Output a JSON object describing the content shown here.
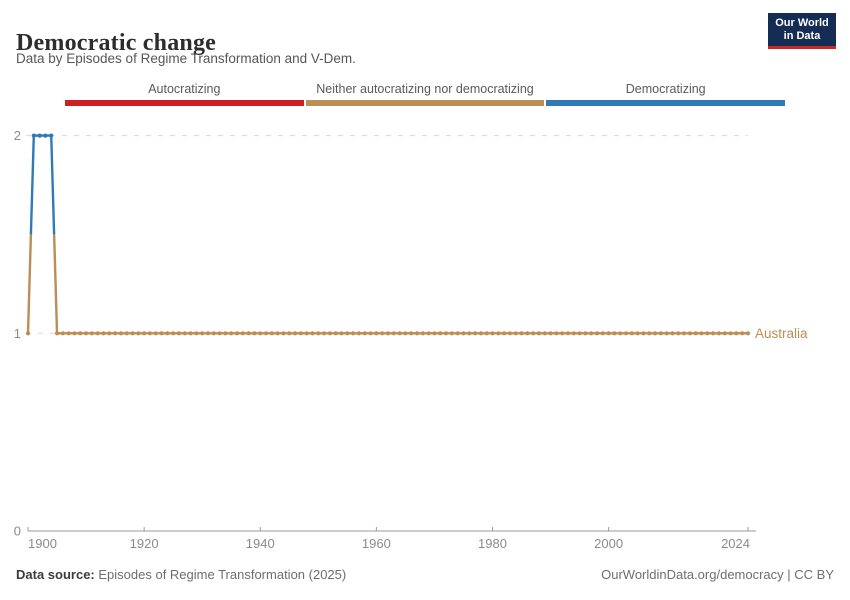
{
  "header": {
    "title": "Democratic change",
    "subtitle": "Data by Episodes of Regime Transformation and V-Dem.",
    "logo": {
      "line1": "Our World",
      "line2": "in Data",
      "bg_color": "#152d54",
      "accent_color": "#cb2824"
    }
  },
  "legend": {
    "items": [
      {
        "label": "Autocratizing",
        "color": "#ce2020"
      },
      {
        "label": "Neither autocratizing nor democratizing",
        "color": "#bc8d54"
      },
      {
        "label": "Democratizing",
        "color": "#2f7ab5"
      }
    ]
  },
  "chart_data": {
    "type": "line",
    "title": "Democratic change",
    "subtitle": "Data by Episodes of Regime Transformation and V-Dem.",
    "entity_label": "Australia",
    "xlim": [
      1900,
      2024
    ],
    "ylim": [
      0,
      2
    ],
    "x_ticks": [
      1900,
      1920,
      1940,
      1960,
      1980,
      2000,
      2024
    ],
    "y_ticks": [
      0,
      1,
      2
    ],
    "gridlines_at": [
      1,
      2
    ],
    "grid_style": "dashed",
    "legend_position": "top",
    "value_labels": {
      "0": "Autocratizing",
      "1": "Neither autocratizing nor democratizing",
      "2": "Democratizing"
    },
    "value_colors": {
      "0": "#ce2020",
      "1": "#bc8d54",
      "2": "#2f7ab5"
    },
    "series": [
      {
        "name": "Australia",
        "runs": [
          {
            "from": 1900,
            "to": 1900,
            "value": 1
          },
          {
            "from": 1901,
            "to": 1904,
            "value": 2
          },
          {
            "from": 1905,
            "to": 2024,
            "value": 1
          }
        ]
      }
    ],
    "axis_text_color": "#8b8b8b",
    "axis_line_color": "#9a9a9a",
    "gridline_color": "#d7d7d7"
  },
  "footer": {
    "source_label": "Data source:",
    "source_text": "Episodes of Regime Transformation (2025)",
    "right_text": "OurWorldinData.org/democracy | CC BY"
  }
}
